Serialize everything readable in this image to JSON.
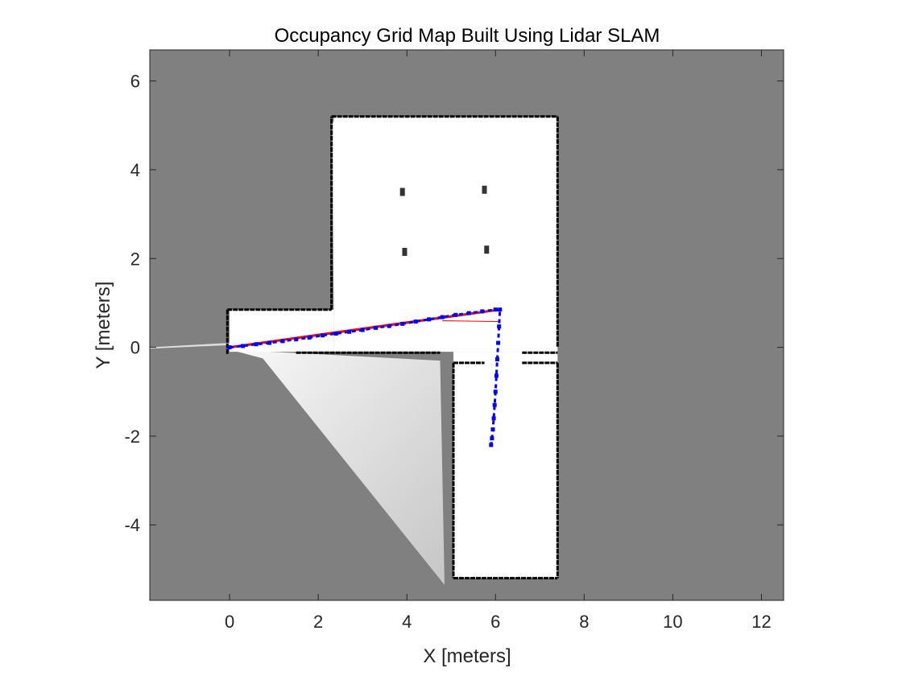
{
  "chart_data": {
    "type": "map",
    "title": "Occupancy Grid Map Built Using Lidar SLAM",
    "xlabel": "X [meters]",
    "ylabel": "Y [meters]",
    "xlim": [
      -1.8,
      12.5
    ],
    "ylim": [
      -5.7,
      6.7
    ],
    "xticks": [
      0,
      2,
      4,
      6,
      8,
      10,
      12
    ],
    "yticks": [
      -4,
      -2,
      0,
      2,
      4,
      6
    ],
    "xtick_labels": [
      "0",
      "2",
      "4",
      "6",
      "8",
      "10",
      "12"
    ],
    "ytick_labels": [
      "-4",
      "-2",
      "0",
      "2",
      "4",
      "6"
    ],
    "grid": false,
    "legend": "none",
    "colors": {
      "unknown": "#808080",
      "free": "#ffffff",
      "occupied": "#000000",
      "trajectory_line": "#ff0000",
      "pose_markers": "#0000ff"
    },
    "free_regions": [
      {
        "x": [
          0.0,
          2.35
        ],
        "y": [
          -0.1,
          0.85
        ]
      },
      {
        "x": [
          2.35,
          7.4
        ],
        "y": [
          -0.1,
          5.2
        ]
      },
      {
        "x": [
          5.05,
          7.4
        ],
        "y": [
          -5.2,
          -0.1
        ]
      }
    ],
    "walls": [
      [
        [
          2.3,
          5.2
        ],
        [
          7.4,
          5.2
        ]
      ],
      [
        [
          7.4,
          5.2
        ],
        [
          7.4,
          0.0
        ]
      ],
      [
        [
          -0.05,
          0.85
        ],
        [
          2.3,
          0.85
        ]
      ],
      [
        [
          2.3,
          0.85
        ],
        [
          2.3,
          5.2
        ]
      ],
      [
        [
          -0.05,
          0.85
        ],
        [
          -0.05,
          -0.15
        ]
      ],
      [
        [
          1.5,
          -0.12
        ],
        [
          4.75,
          -0.12
        ]
      ],
      [
        [
          6.6,
          -0.12
        ],
        [
          7.4,
          -0.12
        ]
      ],
      [
        [
          5.05,
          -0.35
        ],
        [
          5.75,
          -0.35
        ]
      ],
      [
        [
          6.6,
          -0.35
        ],
        [
          7.4,
          -0.35
        ]
      ],
      [
        [
          5.05,
          -0.35
        ],
        [
          5.05,
          -5.2
        ]
      ],
      [
        [
          7.4,
          -0.35
        ],
        [
          7.4,
          -5.2
        ]
      ],
      [
        [
          5.05,
          -5.2
        ],
        [
          7.4,
          -5.2
        ]
      ]
    ],
    "pillars": [
      {
        "x": 3.9,
        "y": 3.5
      },
      {
        "x": 5.75,
        "y": 3.55
      },
      {
        "x": 3.95,
        "y": 2.15
      },
      {
        "x": 5.8,
        "y": 2.2
      }
    ],
    "trajectory": {
      "x": [
        0.0,
        0.3,
        0.6,
        0.9,
        1.2,
        1.5,
        1.8,
        2.1,
        2.4,
        2.7,
        3.0,
        3.3,
        3.6,
        3.9,
        4.2,
        4.5,
        4.8,
        5.1,
        5.4,
        5.7,
        6.0,
        6.1,
        6.08,
        6.06,
        6.04,
        6.02,
        6.0,
        5.98,
        5.96,
        5.94,
        5.92,
        5.9
      ],
      "y": [
        0.0,
        0.03,
        0.07,
        0.1,
        0.14,
        0.18,
        0.22,
        0.27,
        0.31,
        0.35,
        0.39,
        0.44,
        0.48,
        0.53,
        0.58,
        0.63,
        0.68,
        0.73,
        0.77,
        0.81,
        0.85,
        0.85,
        0.47,
        0.1,
        -0.27,
        -0.64,
        -1.0,
        -1.3,
        -1.6,
        -1.85,
        -2.05,
        -2.2
      ]
    },
    "loop_closure_lines": [
      {
        "x": [
          4.8,
          6.1
        ],
        "y": [
          0.6,
          0.58
        ]
      },
      {
        "x": [
          0.0,
          6.1
        ],
        "y": [
          0.0,
          0.85
        ]
      }
    ]
  }
}
